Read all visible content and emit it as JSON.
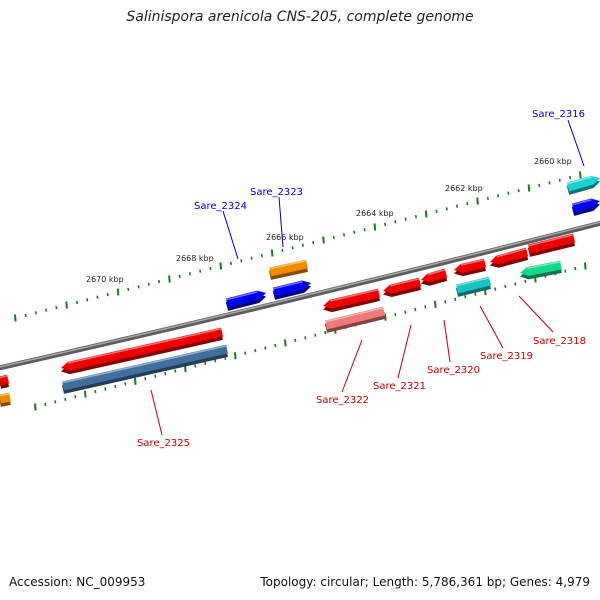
{
  "title": "Salinispora arenicola CNS-205, complete genome",
  "footer": {
    "accession": "Accession: NC_009953",
    "topology": "Topology: circular; Length: 5,786,361 bp; Genes: 4,979"
  },
  "colors": {
    "backbone": "#808080",
    "tick": "#1a7a1a",
    "label_forward": "#0000c0",
    "label_reverse": "#c00000"
  },
  "scale_labels": [
    "2660 kbp",
    "2662 kbp",
    "2664 kbp",
    "2666 kbp",
    "2668 kbp",
    "2670 kbp"
  ],
  "gene_labels": {
    "forward": [
      "Sare_2316",
      "Sare_2323",
      "Sare_2324"
    ],
    "reverse": [
      "Sare_2318",
      "Sare_2319",
      "Sare_2320",
      "Sare_2321",
      "Sare_2322",
      "Sare_2325"
    ]
  }
}
